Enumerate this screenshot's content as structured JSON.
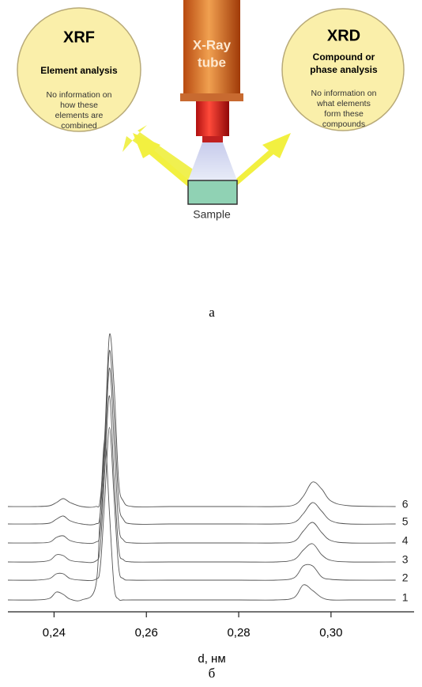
{
  "diagram": {
    "xrf": {
      "title": "XRF",
      "subtitle": "Element analysis",
      "note": [
        "No information on",
        "how these",
        "elements are",
        "combined"
      ]
    },
    "xrd": {
      "title": "XRD",
      "subtitle": [
        "Compound or",
        "phase analysis"
      ],
      "note": [
        "No information on",
        "what elements",
        "form these",
        "compounds"
      ]
    },
    "tube": [
      "X-Ray",
      "tube"
    ],
    "sample": "Sample",
    "caption": "а"
  },
  "chart_data": {
    "type": "line",
    "caption": "б",
    "x_label": "d, нм",
    "x": [
      0.23,
      0.236,
      0.239,
      0.2405,
      0.242,
      0.2435,
      0.246,
      0.249,
      0.25,
      0.251,
      0.252,
      0.253,
      0.254,
      0.255,
      0.257,
      0.265,
      0.28,
      0.288,
      0.292,
      0.294,
      0.296,
      0.298,
      0.3,
      0.304,
      0.314
    ],
    "series": [
      {
        "name": "1",
        "color": "#555555",
        "values": [
          15,
          15,
          17,
          25,
          22,
          16,
          15,
          32,
          125,
          218,
          125,
          32,
          16,
          15,
          15,
          15,
          15,
          15,
          18,
          34,
          27,
          18,
          15,
          15,
          15
        ]
      },
      {
        "name": "2",
        "color": "#555555",
        "values": [
          40,
          40,
          42,
          48,
          48,
          42,
          40,
          41,
          56,
          144,
          233,
          144,
          56,
          42,
          40,
          40,
          40,
          40,
          43,
          58,
          58,
          44,
          41,
          40,
          40
        ]
      },
      {
        "name": "3",
        "color": "#555555",
        "values": [
          63,
          63,
          65,
          72,
          71,
          65,
          63,
          64,
          82,
          180,
          273,
          170,
          80,
          66,
          63,
          63,
          63,
          63,
          66,
          78,
          86,
          72,
          65,
          63,
          63
        ]
      },
      {
        "name": "4",
        "color": "#555555",
        "values": [
          87,
          87,
          88,
          94,
          96,
          90,
          87,
          88,
          103,
          200,
          308,
          215,
          110,
          91,
          87,
          87,
          87,
          87,
          89,
          102,
          113,
          100,
          90,
          87,
          87
        ]
      },
      {
        "name": "5",
        "color": "#555555",
        "values": [
          111,
          111,
          112,
          117,
          121,
          115,
          111,
          111,
          124,
          215,
          330,
          250,
          140,
          117,
          111,
          111,
          111,
          111,
          113,
          124,
          138,
          127,
          115,
          111,
          111
        ]
      },
      {
        "name": "6",
        "color": "#555555",
        "values": [
          133,
          133,
          134,
          138,
          143,
          138,
          133,
          133,
          142,
          225,
          350,
          285,
          165,
          140,
          133,
          133,
          133,
          133,
          135,
          146,
          164,
          155,
          140,
          134,
          133
        ]
      }
    ],
    "xlim": [
      0.23,
      0.318
    ],
    "ylim": [
      0,
      360
    ],
    "xticks": [
      {
        "value": 0.24,
        "label": "0,24"
      },
      {
        "value": 0.26,
        "label": "0,26"
      },
      {
        "value": 0.28,
        "label": "0,28"
      },
      {
        "value": 0.3,
        "label": "0,30"
      }
    ]
  }
}
